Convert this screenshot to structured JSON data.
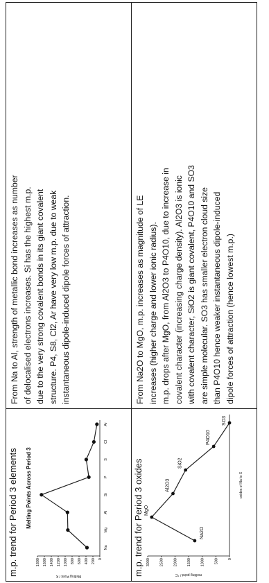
{
  "rows": [
    {
      "label": "m.p. trend for Period 3 elements",
      "description_lines": [
        "From Na to Al, strength of metallic bond increases as number",
        "of delocalised electrons increases. Si has the highest m.p.",
        "due to the very strong covalent bonds in its giant covalent",
        "structure. P4, S8, Cl2, Ar have very low m.p. due to weak",
        "instantaneous dipole-induced dipole forces of attraction."
      ]
    },
    {
      "label": "m.p. trend for Period 3 oxides",
      "description_lines": [
        "From Na2O to MgO, m.p. increases as magnitude of LE",
        "increases (higher charge and lower ionic radius).",
        "m.p. drops after MgO, from Al2O3 to P4O10, due to increase in",
        "covalent character (increasing charge density). Al2O3 is ionic",
        "with covalent character, SiO2 is giant covalent, P4O10 and SO3",
        "are simple molecular. SO3 has smaller electron cloud size",
        "than P4O10 hence weaker instantaneous dipole-induced",
        "dipole forces of attraction (hence lowest m.p.)"
      ]
    }
  ],
  "chart_data": [
    {
      "type": "line",
      "title": "Melting Points Across Period 3",
      "ylabel": "Melting Point / K",
      "xlabel": "",
      "categories": [
        "Na",
        "Mg",
        "Al",
        "Si",
        "P",
        "S",
        "Cl",
        "Ar"
      ],
      "values": [
        371,
        923,
        933,
        1683,
        317,
        392,
        172,
        84
      ],
      "ylim": [
        0,
        1800
      ],
      "yticks": [
        "0",
        "200",
        "400",
        "600",
        "800",
        "1000",
        "1200",
        "1400",
        "1600",
        "1800"
      ]
    },
    {
      "type": "line",
      "title": "",
      "ylabel": "melting point / °C",
      "xlabel": "oxides of Na to S",
      "series": [
        {
          "label": "Na2O",
          "value": 1275
        },
        {
          "label": "MgO",
          "value": 2852
        },
        {
          "label": "Al2O3",
          "value": 2072
        },
        {
          "label": "SiO2",
          "value": 1610
        },
        {
          "label": "P4O10",
          "value": 580
        },
        {
          "label": "SO3",
          "value": -17
        }
      ],
      "ylim": [
        0,
        3000
      ],
      "yticks": [
        "0",
        "500",
        "1000",
        "1500",
        "2000",
        "2500",
        "3000"
      ]
    }
  ]
}
